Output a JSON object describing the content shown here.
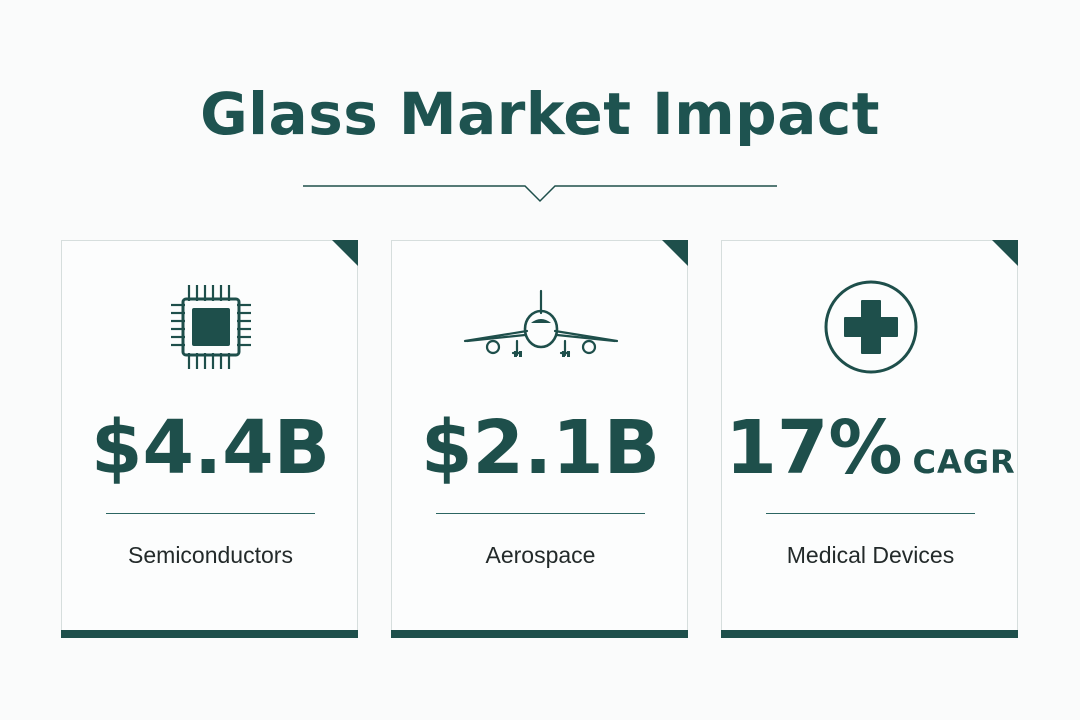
{
  "title": "Glass Market Impact",
  "colors": {
    "primary": "#1e4f4b",
    "background": "#fafbfb",
    "label_text": "#232a2a"
  },
  "cards": [
    {
      "icon": "chip-icon",
      "value": "$4.4B",
      "suffix": "",
      "label": "Semiconductors"
    },
    {
      "icon": "airplane-icon",
      "value": "$2.1B",
      "suffix": "",
      "label": "Aerospace"
    },
    {
      "icon": "medical-cross-icon",
      "value": "17%",
      "suffix": "CAGR",
      "label": "Medical Devices"
    }
  ]
}
